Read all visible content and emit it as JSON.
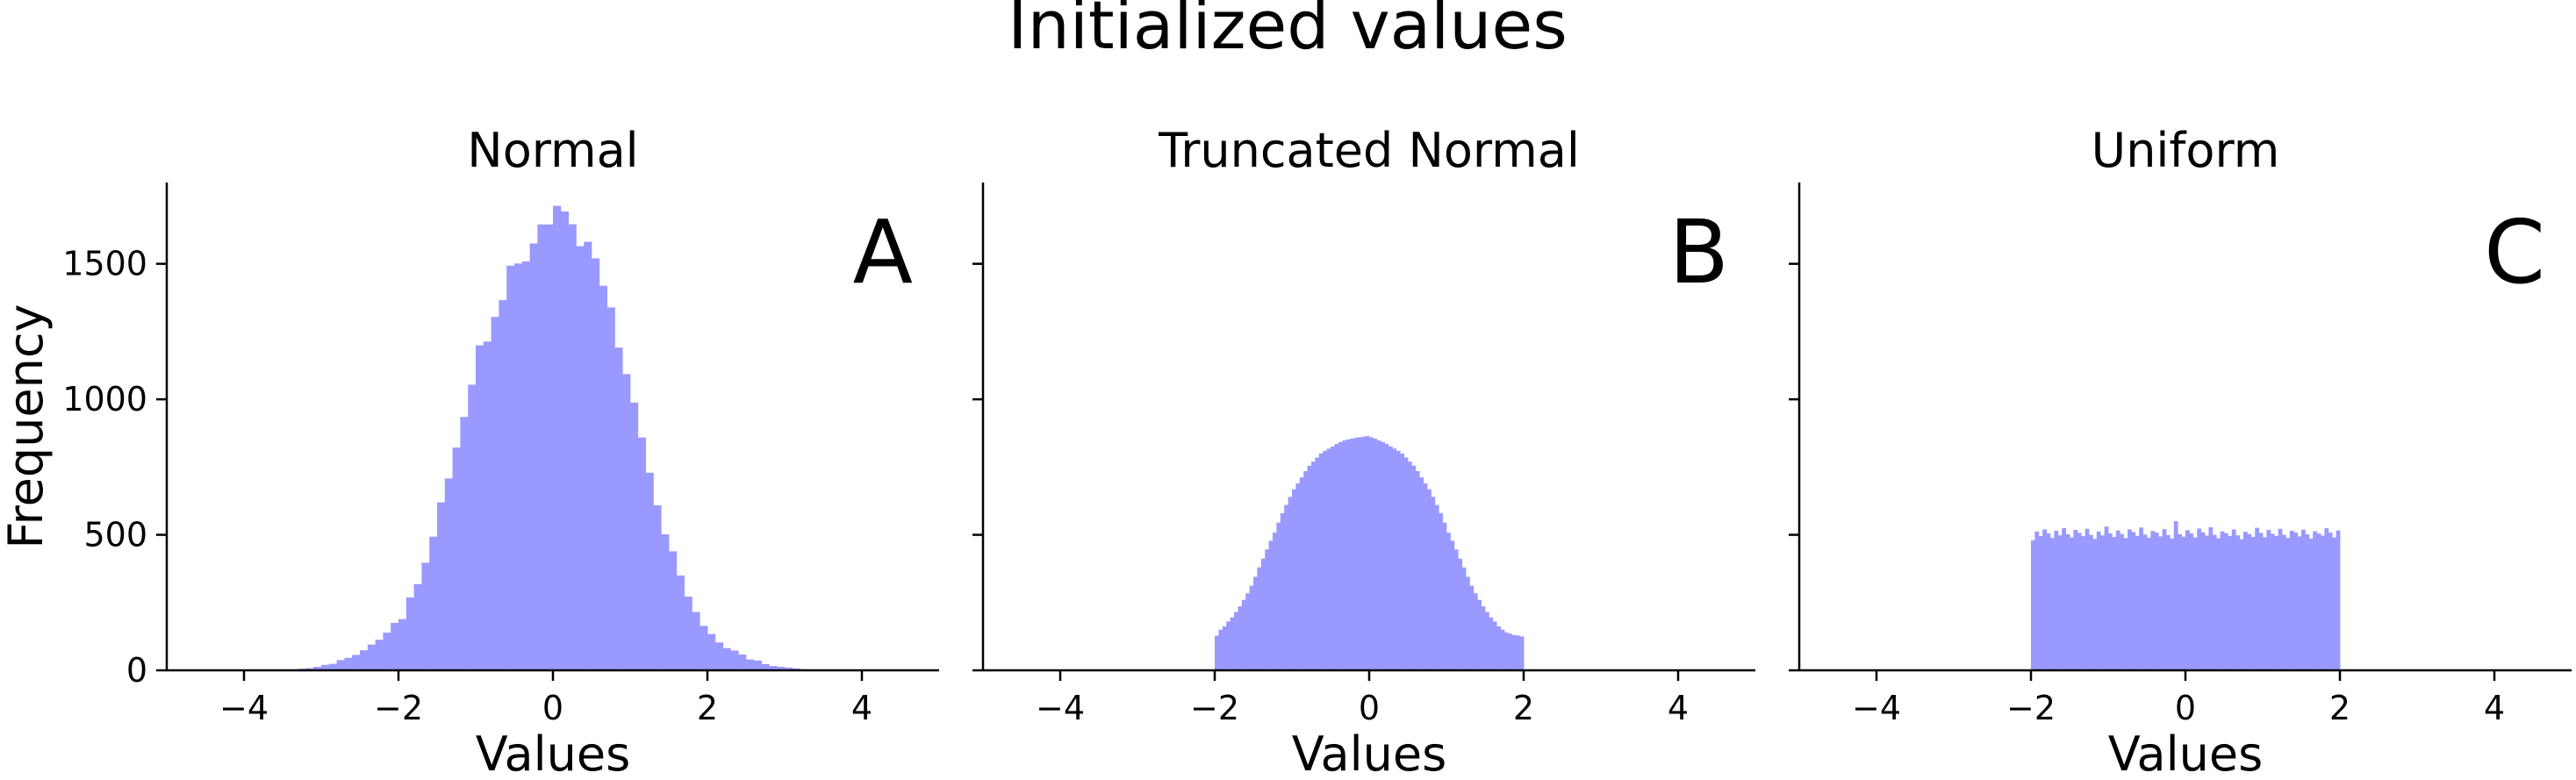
{
  "figure": {
    "title": "Initialized values",
    "bar_color": "#9999ff"
  },
  "chart_data": [
    {
      "type": "bar",
      "title": "Normal",
      "panel_label": "A",
      "xlabel": "Values",
      "ylabel": "Frequency",
      "xlim": [
        -5,
        5
      ],
      "ylim": [
        0,
        1800
      ],
      "xticks": [
        -4,
        -2,
        0,
        2,
        4
      ],
      "xtick_labels": [
        "−4",
        "−2",
        "0",
        "2",
        "4"
      ],
      "yticks": [
        0,
        500,
        1000,
        1500
      ],
      "ytick_labels": [
        "0",
        "500",
        "1000",
        "1500"
      ],
      "grid": false,
      "bin_width": 0.1,
      "bins_start": [
        -3.3,
        -3.2,
        -3.1,
        -3.0,
        -2.9,
        -2.8,
        -2.7,
        -2.6,
        -2.5,
        -2.4,
        -2.3,
        -2.2,
        -2.1,
        -2.0,
        -1.9,
        -1.8,
        -1.7,
        -1.6,
        -1.5,
        -1.4,
        -1.3,
        -1.2,
        -1.1,
        -1.0,
        -0.9,
        -0.8,
        -0.7,
        -0.6,
        -0.5,
        -0.4,
        -0.3,
        -0.2,
        -0.1,
        0.0,
        0.1,
        0.2,
        0.3,
        0.4,
        0.5,
        0.6,
        0.7,
        0.8,
        0.9,
        1.0,
        1.1,
        1.2,
        1.3,
        1.4,
        1.5,
        1.6,
        1.7,
        1.8,
        1.9,
        2.0,
        2.1,
        2.2,
        2.3,
        2.4,
        2.5,
        2.6,
        2.7,
        2.8,
        2.9,
        3.0,
        3.1,
        3.2,
        3.3,
        3.4
      ],
      "values": [
        6,
        8,
        13,
        20,
        24,
        38,
        46,
        57,
        74,
        95,
        113,
        139,
        175,
        189,
        269,
        318,
        397,
        493,
        620,
        708,
        822,
        935,
        1054,
        1199,
        1213,
        1304,
        1366,
        1493,
        1501,
        1509,
        1575,
        1645,
        1645,
        1714,
        1693,
        1646,
        1565,
        1581,
        1520,
        1419,
        1339,
        1191,
        1093,
        988,
        859,
        729,
        609,
        502,
        439,
        350,
        272,
        215,
        164,
        134,
        103,
        82,
        73,
        58,
        40,
        36,
        23,
        16,
        13,
        10,
        7,
        4,
        3,
        2
      ]
    },
    {
      "type": "bar",
      "title": "Truncated Normal",
      "panel_label": "B",
      "xlabel": "Values",
      "ylabel": "",
      "xlim": [
        -5,
        5
      ],
      "ylim": [
        0,
        1800
      ],
      "xticks": [
        -4,
        -2,
        0,
        2,
        4
      ],
      "xtick_labels": [
        "−4",
        "−2",
        "0",
        "2",
        "4"
      ],
      "yticks": [
        0,
        500,
        1000,
        1500
      ],
      "ytick_labels": [],
      "grid": false,
      "bin_width": 0.05,
      "bins_start": [
        -2.0,
        -1.95,
        -1.9,
        -1.85,
        -1.8,
        -1.75,
        -1.7,
        -1.65,
        -1.6,
        -1.55,
        -1.5,
        -1.45,
        -1.4,
        -1.35,
        -1.3,
        -1.25,
        -1.2,
        -1.15,
        -1.1,
        -1.05,
        -1.0,
        -0.95,
        -0.9,
        -0.85,
        -0.8,
        -0.75,
        -0.7,
        -0.65,
        -0.6,
        -0.55,
        -0.5,
        -0.45,
        -0.4,
        -0.35,
        -0.3,
        -0.25,
        -0.2,
        -0.15,
        -0.1,
        -0.05,
        0.0,
        0.05,
        0.1,
        0.15,
        0.2,
        0.25,
        0.3,
        0.35,
        0.4,
        0.45,
        0.5,
        0.55,
        0.6,
        0.65,
        0.7,
        0.75,
        0.8,
        0.85,
        0.9,
        0.95,
        1.0,
        1.05,
        1.1,
        1.15,
        1.2,
        1.25,
        1.3,
        1.35,
        1.4,
        1.45,
        1.5,
        1.55,
        1.6,
        1.65,
        1.7,
        1.75,
        1.8,
        1.85,
        1.9,
        1.95
      ],
      "values": [
        128,
        150,
        162,
        180,
        195,
        215,
        236,
        260,
        284,
        312,
        345,
        380,
        412,
        446,
        478,
        508,
        545,
        580,
        610,
        640,
        668,
        690,
        712,
        735,
        755,
        770,
        785,
        800,
        810,
        818,
        826,
        835,
        842,
        848,
        852,
        855,
        858,
        860,
        862,
        864,
        860,
        855,
        848,
        842,
        835,
        826,
        818,
        810,
        800,
        785,
        770,
        755,
        735,
        712,
        690,
        668,
        640,
        610,
        580,
        545,
        508,
        478,
        446,
        412,
        380,
        345,
        312,
        284,
        260,
        236,
        215,
        195,
        180,
        162,
        150,
        140,
        135,
        130,
        128,
        125
      ]
    },
    {
      "type": "bar",
      "title": "Uniform",
      "panel_label": "C",
      "xlabel": "Values",
      "ylabel": "",
      "xlim": [
        -5,
        5
      ],
      "ylim": [
        0,
        1800
      ],
      "xticks": [
        -4,
        -2,
        0,
        2,
        4
      ],
      "xtick_labels": [
        "−4",
        "−2",
        "0",
        "2",
        "4"
      ],
      "yticks": [
        0,
        500,
        1000,
        1500
      ],
      "ytick_labels": [],
      "grid": false,
      "bin_width": 0.05,
      "bins_start": [
        -2.0,
        -1.95,
        -1.9,
        -1.85,
        -1.8,
        -1.75,
        -1.7,
        -1.65,
        -1.6,
        -1.55,
        -1.5,
        -1.45,
        -1.4,
        -1.35,
        -1.3,
        -1.25,
        -1.2,
        -1.15,
        -1.1,
        -1.05,
        -1.0,
        -0.95,
        -0.9,
        -0.85,
        -0.8,
        -0.75,
        -0.7,
        -0.65,
        -0.6,
        -0.55,
        -0.5,
        -0.45,
        -0.4,
        -0.35,
        -0.3,
        -0.25,
        -0.2,
        -0.15,
        -0.1,
        -0.05,
        0.0,
        0.05,
        0.1,
        0.15,
        0.2,
        0.25,
        0.3,
        0.35,
        0.4,
        0.45,
        0.5,
        0.55,
        0.6,
        0.65,
        0.7,
        0.75,
        0.8,
        0.85,
        0.9,
        0.95,
        1.0,
        1.05,
        1.1,
        1.15,
        1.2,
        1.25,
        1.3,
        1.35,
        1.4,
        1.45,
        1.5,
        1.55,
        1.6,
        1.65,
        1.7,
        1.75,
        1.8,
        1.85,
        1.9,
        1.95
      ],
      "values": [
        480,
        512,
        495,
        520,
        505,
        488,
        515,
        498,
        525,
        502,
        490,
        518,
        507,
        495,
        522,
        500,
        485,
        512,
        498,
        530,
        505,
        492,
        516,
        503,
        488,
        520,
        510,
        496,
        527,
        501,
        489,
        514,
        508,
        494,
        521,
        499,
        486,
        550,
        502,
        493,
        517,
        505,
        490,
        523,
        509,
        497,
        528,
        500,
        487,
        513,
        506,
        495,
        520,
        498,
        484,
        511,
        503,
        492,
        526,
        507,
        491,
        518,
        504,
        496,
        522,
        500,
        488,
        515,
        509,
        494,
        519,
        502,
        486,
        513,
        505,
        497,
        524,
        508,
        490,
        516
      ]
    }
  ]
}
